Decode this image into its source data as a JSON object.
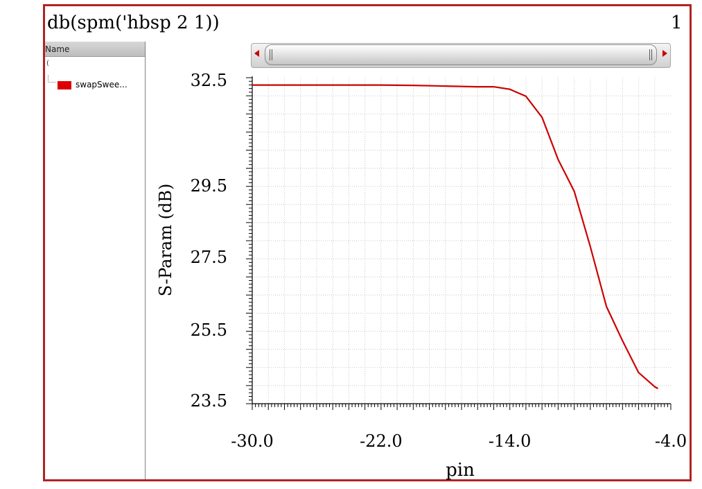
{
  "window": {
    "title": "db(spm('hbsp 2 1))",
    "subwindow_number": "1"
  },
  "legend": {
    "header": "Name",
    "root_label": "(",
    "items": [
      {
        "label": "swapSwee...",
        "color": "#dd0000"
      }
    ]
  },
  "chart_data": {
    "type": "line",
    "title": "",
    "xlabel": "pin",
    "ylabel": "S-Param (dB)",
    "xlim": [
      -30.0,
      -4.0
    ],
    "ylim": [
      23.5,
      32.5
    ],
    "x_ticks": [
      "-30.0",
      "-22.0",
      "-14.0",
      "-4.0"
    ],
    "x_tick_values": [
      -30.0,
      -22.0,
      -14.0,
      -4.0
    ],
    "y_ticks": [
      "32.5",
      "29.5",
      "27.5",
      "25.5",
      "23.5"
    ],
    "y_tick_values": [
      32.5,
      29.5,
      27.5,
      25.5,
      23.5
    ],
    "grid": true,
    "series": [
      {
        "name": "swapSwee...",
        "color": "#cc0000",
        "x": [
          -30,
          -28,
          -26,
          -24,
          -22,
          -20,
          -18,
          -16,
          -15,
          -14,
          -13,
          -12,
          -11,
          -10,
          -9,
          -8,
          -7,
          -6,
          -5,
          -4.8
        ],
        "y": [
          32.37,
          32.37,
          32.37,
          32.37,
          32.37,
          32.36,
          32.34,
          32.32,
          32.32,
          32.25,
          32.05,
          31.45,
          30.25,
          29.35,
          27.8,
          26.15,
          25.2,
          24.3,
          23.9,
          23.85
        ]
      }
    ]
  }
}
